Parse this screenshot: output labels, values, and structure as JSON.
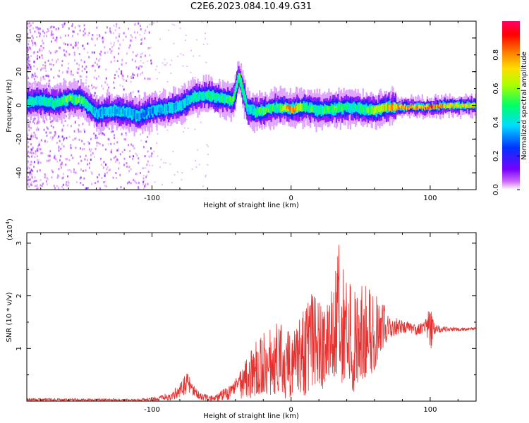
{
  "title": "C2E6.2023.084.10.49.G31",
  "chart_data": [
    {
      "type": "heatmap",
      "title": "C2E6.2023.084.10.49.G31",
      "xlabel": "Height of straight line (km)",
      "ylabel": "Frequency (Hz)",
      "xlim": [
        -190,
        133
      ],
      "ylim": [
        -50,
        50
      ],
      "x_ticks": [
        -100,
        0,
        100
      ],
      "x_tick_labels": [
        "-100",
        "0",
        "100"
      ],
      "y_ticks": [
        -40,
        -20,
        0,
        20,
        40
      ],
      "y_tick_labels": [
        "-40",
        "-20",
        "0",
        "20",
        "40"
      ],
      "colorbar": {
        "label": "Normalized spectral amplitude",
        "range": [
          0,
          1
        ],
        "ticks": [
          0.0,
          0.2,
          0.4,
          0.6,
          0.8
        ],
        "tick_labels": [
          "0.0",
          "0.2",
          "0.4",
          "0.6",
          "0.8"
        ]
      },
      "ridge": {
        "x": [
          -190,
          -180,
          -170,
          -160,
          -150,
          -140,
          -130,
          -120,
          -110,
          -100,
          -90,
          -80,
          -70,
          -60,
          -50,
          -42,
          -38,
          -35,
          -32,
          -25,
          -20,
          -10,
          0,
          10,
          20,
          30,
          40,
          50,
          60,
          70,
          80,
          90,
          100,
          110,
          120,
          133
        ],
        "freq": [
          2,
          3,
          1,
          4,
          3,
          -5,
          -3,
          -4,
          -6,
          -3,
          -2,
          0,
          5,
          6,
          4,
          3,
          18,
          9,
          -2,
          -4,
          -3,
          -1,
          -2,
          -1,
          -3,
          -2,
          -1,
          -2,
          -3,
          -1,
          -1,
          -1,
          -1,
          0,
          0,
          0
        ],
        "amplitude": [
          0.5,
          0.45,
          0.45,
          0.6,
          0.55,
          0.35,
          0.4,
          0.4,
          0.35,
          0.35,
          0.4,
          0.4,
          0.45,
          0.5,
          0.5,
          0.55,
          0.55,
          0.6,
          0.4,
          0.45,
          0.6,
          0.5,
          0.9,
          0.55,
          0.5,
          0.6,
          0.5,
          0.5,
          0.65,
          0.8,
          0.85,
          0.8,
          0.9,
          0.75,
          0.7,
          0.75
        ]
      }
    },
    {
      "type": "line",
      "xlabel": "Height of straight line (km)",
      "ylabel": "SNR (10 * v/v)",
      "y_multiplier_label": "(x10",
      "y_multiplier_exp": "4",
      "xlim": [
        -190,
        133
      ],
      "ylim": [
        0,
        3.2
      ],
      "x_ticks": [
        -100,
        0,
        100
      ],
      "x_tick_labels": [
        "-100",
        "0",
        "100"
      ],
      "y_ticks": [
        1,
        2,
        3
      ],
      "y_tick_labels": [
        "1",
        "2",
        "3"
      ],
      "series": [
        {
          "color": "#e8302e",
          "envelope": {
            "x": [
              -190,
              -170,
              -150,
              -130,
              -110,
              -95,
              -85,
              -78,
              -74,
              -70,
              -65,
              -55,
              -50,
              -45,
              -42,
              -38,
              -35,
              -30,
              -25,
              -20,
              -15,
              -10,
              -5,
              0,
              5,
              10,
              15,
              20,
              25,
              30,
              35,
              40,
              45,
              50,
              55,
              60,
              65,
              70,
              75,
              80,
              85,
              90,
              95,
              98,
              100,
              102,
              105,
              110,
              120,
              133
            ],
            "high": [
              0.06,
              0.05,
              0.05,
              0.05,
              0.04,
              0.1,
              0.2,
              0.45,
              0.55,
              0.3,
              0.15,
              0.1,
              0.2,
              0.3,
              0.35,
              0.5,
              0.65,
              0.95,
              1.15,
              1.3,
              1.4,
              1.5,
              1.45,
              1.3,
              1.55,
              1.8,
              2.05,
              1.9,
              2.05,
              2.3,
              3.1,
              2.3,
              2.15,
              2.3,
              2.25,
              2.0,
              2.0,
              1.6,
              1.6,
              1.55,
              1.5,
              1.45,
              1.5,
              1.65,
              1.85,
              1.55,
              1.45,
              1.42,
              1.4,
              1.4
            ],
            "low": [
              0.0,
              0.0,
              0.0,
              0.0,
              0.0,
              0.0,
              0.02,
              0.1,
              0.15,
              0.1,
              0.02,
              0.0,
              0.0,
              0.02,
              0.03,
              0.05,
              0.05,
              0.05,
              0.1,
              0.15,
              0.1,
              0.15,
              0.05,
              0.05,
              0.15,
              0.1,
              0.3,
              0.15,
              0.3,
              0.45,
              0.25,
              0.5,
              0.15,
              0.4,
              0.35,
              0.55,
              0.95,
              1.2,
              1.25,
              1.3,
              1.3,
              1.25,
              1.3,
              1.2,
              0.9,
              1.15,
              1.3,
              1.32,
              1.33,
              1.35
            ]
          }
        }
      ]
    }
  ]
}
